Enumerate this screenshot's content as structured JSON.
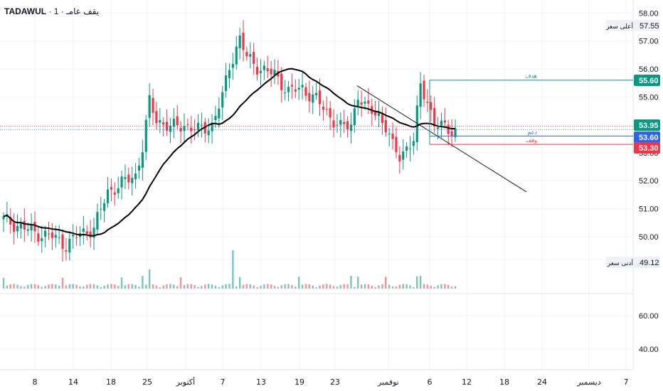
{
  "header": {
    "symbol": "TADAWUL",
    "separator": "·",
    "title": "1 · يقف عامـ"
  },
  "price_axis": {
    "ticks": [
      "58.00",
      "57.00",
      "56.00",
      "55.00",
      "54.00",
      "53.00",
      "52.00",
      "51.00",
      "50.00"
    ],
    "labels": {
      "high": {
        "caption": "أعلى سعر",
        "value": "57.55"
      },
      "low": {
        "caption": "أدنى سعر",
        "value": "49.12"
      }
    },
    "markers": [
      {
        "value": "55.60",
        "color": "#089981",
        "level": 55.6
      },
      {
        "value": "53.95",
        "color": "#089981",
        "level": 53.95
      },
      {
        "value": "53.60",
        "color": "#2962ff",
        "level": 53.6
      },
      {
        "value": "53.30",
        "color": "#f23645",
        "level": 53.3
      }
    ]
  },
  "lower_axis": {
    "ticks": [
      "60.00",
      "40.00"
    ]
  },
  "time_axis": {
    "ticks": [
      "8",
      "14",
      "18",
      "25",
      "أكتوبر",
      "7",
      "13",
      "19",
      "23",
      "نوفمبر",
      "6",
      "12",
      "18",
      "24",
      "ديسمبر",
      "7"
    ]
  },
  "annotations": {
    "target": {
      "text": "هدف",
      "level": 55.6,
      "color": "#089981"
    },
    "support": {
      "text": "دعم",
      "level": 53.6,
      "color": "#2962ff"
    },
    "stop": {
      "text": "وقف",
      "level": 53.3,
      "color": "#f23645"
    }
  },
  "colors": {
    "up": "#089981",
    "down": "#f23645",
    "ma": "#000000",
    "grid": "#f0f3fa",
    "axis_text": "#131722"
  },
  "chart_data": {
    "type": "candlestick",
    "series": [
      {
        "name": "",
        "type": "line",
        "values": []
      }
    ],
    "trendline": {
      "from": 55.4,
      "to": 51.6
    },
    "volume": []
  }
}
